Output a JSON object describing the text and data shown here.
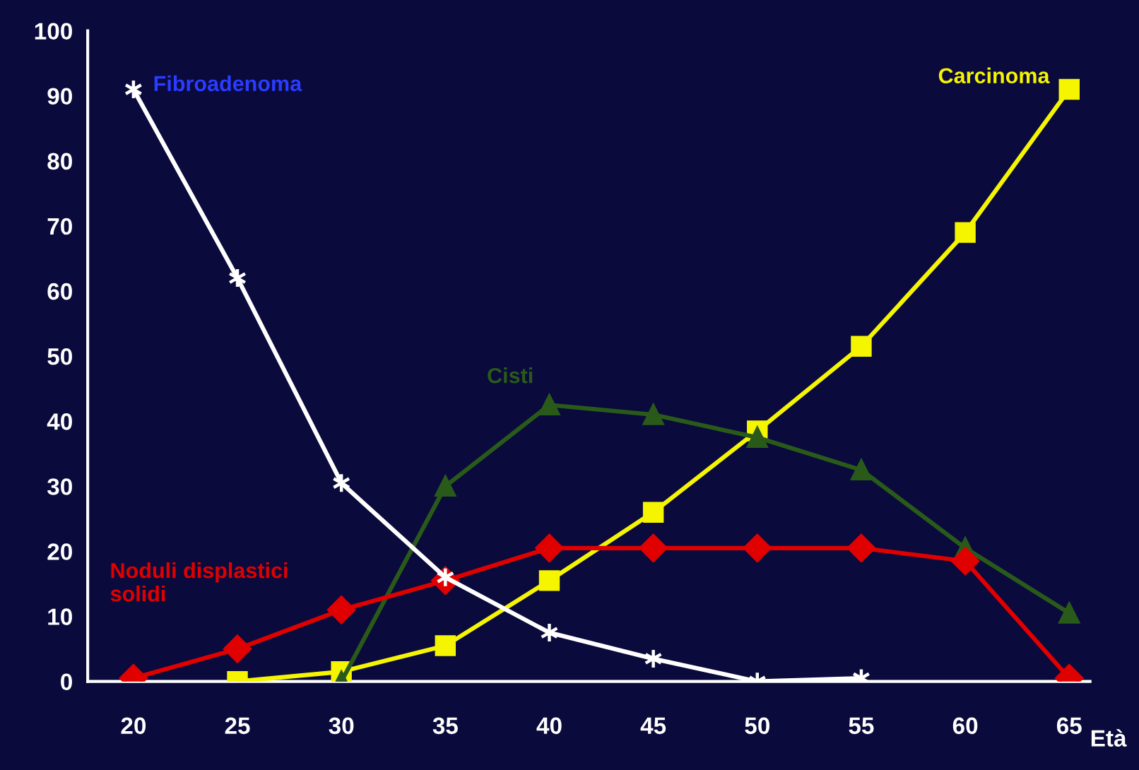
{
  "chart_data": {
    "type": "line",
    "xlabel": "Età",
    "x": [
      20,
      25,
      30,
      35,
      40,
      45,
      50,
      55,
      60,
      65
    ],
    "series": [
      {
        "name": "Fibroadenoma",
        "color": "#ffffff",
        "marker": "cross",
        "values": [
          91,
          62,
          30.5,
          16,
          7.5,
          3.5,
          0,
          0.5,
          null,
          null
        ]
      },
      {
        "name": "Noduli displastici\nsolidi",
        "color": "#e00000",
        "marker": "diamond",
        "values": [
          0.5,
          5,
          11,
          15.5,
          20.5,
          20.5,
          20.5,
          20.5,
          18.5,
          0.5
        ]
      },
      {
        "name": "Cisti",
        "color": "#2a5a1a",
        "marker": "triangle",
        "values": [
          null,
          null,
          0,
          30,
          42.5,
          41,
          37.5,
          32.5,
          20.5,
          10.5
        ]
      },
      {
        "name": "Carcinoma",
        "color": "#f5f500",
        "marker": "square",
        "values": [
          null,
          0,
          1.5,
          5.5,
          15.5,
          26,
          38.5,
          51.5,
          69,
          91
        ]
      }
    ],
    "xlim": [
      17.8,
      66
    ],
    "xticks": [
      20,
      25,
      30,
      35,
      40,
      45,
      50,
      55,
      60,
      65
    ],
    "ylim": [
      0,
      100
    ],
    "yticks": [
      0,
      10,
      20,
      30,
      40,
      50,
      60,
      70,
      80,
      90,
      100
    ],
    "legend": false
  }
}
